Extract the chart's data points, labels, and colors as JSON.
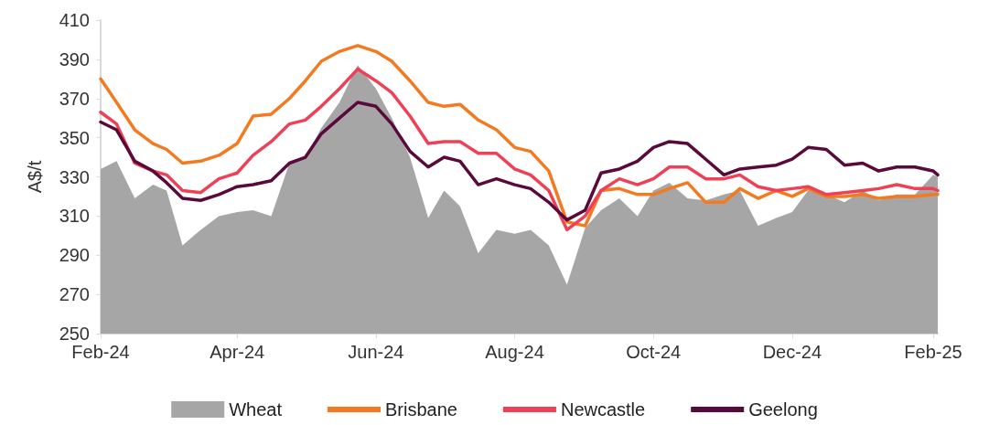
{
  "chart_data": {
    "type": "line",
    "ylabel": "A$/t",
    "x": [
      "2024-02-01",
      "2024-02-08",
      "2024-02-16",
      "2024-02-24",
      "2024-03-01",
      "2024-03-08",
      "2024-03-16",
      "2024-03-24",
      "2024-04-01",
      "2024-04-08",
      "2024-04-16",
      "2024-04-24",
      "2024-05-01",
      "2024-05-08",
      "2024-05-16",
      "2024-05-24",
      "2024-06-01",
      "2024-06-08",
      "2024-06-16",
      "2024-06-24",
      "2024-07-01",
      "2024-07-08",
      "2024-07-16",
      "2024-07-24",
      "2024-08-01",
      "2024-08-08",
      "2024-08-16",
      "2024-08-24",
      "2024-09-01",
      "2024-09-08",
      "2024-09-16",
      "2024-09-24",
      "2024-10-01",
      "2024-10-08",
      "2024-10-16",
      "2024-10-24",
      "2024-11-01",
      "2024-11-08",
      "2024-11-16",
      "2024-11-24",
      "2024-12-01",
      "2024-12-08",
      "2024-12-16",
      "2024-12-24",
      "2025-01-01",
      "2025-01-08",
      "2025-01-16",
      "2025-01-24",
      "2025-02-01",
      "2025-02-03"
    ],
    "series": [
      {
        "name": "Wheat",
        "type": "area",
        "color": "#a6a6a6",
        "values": [
          334,
          338,
          319,
          326,
          323,
          295,
          303,
          310,
          312,
          313,
          310,
          337,
          340,
          355,
          368,
          387,
          375,
          360,
          340,
          309,
          323,
          315,
          291,
          303,
          301,
          303,
          295,
          275,
          304,
          313,
          319,
          310,
          323,
          327,
          319,
          318,
          321,
          323,
          305,
          309,
          312,
          323,
          321,
          317,
          323,
          318,
          321,
          321,
          331,
          330
        ]
      },
      {
        "name": "Brisbane",
        "color": "#f47a20",
        "values": [
          380,
          368,
          354,
          347,
          344,
          337,
          338,
          341,
          347,
          361,
          362,
          370,
          379,
          389,
          394,
          397,
          394,
          389,
          379,
          368,
          366,
          367,
          359,
          354,
          345,
          343,
          333,
          307,
          305,
          323,
          324,
          321,
          321,
          324,
          327,
          317,
          317,
          324,
          319,
          323,
          320,
          324,
          320,
          320,
          321,
          319,
          320,
          320,
          321,
          321
        ]
      },
      {
        "name": "Newcastle",
        "color": "#ee4056",
        "values": [
          363,
          357,
          337,
          333,
          331,
          323,
          322,
          329,
          332,
          341,
          348,
          357,
          359,
          366,
          375,
          385,
          379,
          373,
          361,
          347,
          348,
          348,
          342,
          342,
          334,
          331,
          323,
          303,
          310,
          323,
          329,
          326,
          329,
          335,
          335,
          329,
          329,
          331,
          325,
          323,
          324,
          325,
          321,
          322,
          323,
          324,
          326,
          324,
          324,
          323
        ]
      },
      {
        "name": "Geelong",
        "color": "#5a0a3a",
        "values": [
          358,
          354,
          338,
          333,
          327,
          319,
          318,
          321,
          325,
          326,
          328,
          337,
          340,
          352,
          360,
          368,
          366,
          357,
          343,
          335,
          340,
          338,
          326,
          329,
          326,
          324,
          317,
          308,
          313,
          332,
          334,
          338,
          345,
          348,
          347,
          339,
          331,
          334,
          335,
          336,
          339,
          345,
          344,
          336,
          337,
          333,
          335,
          335,
          333,
          331
        ]
      }
    ],
    "xlim": [
      "2024-02-01",
      "2025-02-03"
    ],
    "xticks": [
      {
        "value": "2024-02-01",
        "label": "Feb-24"
      },
      {
        "value": "2024-04-01",
        "label": "Apr-24"
      },
      {
        "value": "2024-06-01",
        "label": "Jun-24"
      },
      {
        "value": "2024-08-01",
        "label": "Aug-24"
      },
      {
        "value": "2024-10-01",
        "label": "Oct-24"
      },
      {
        "value": "2024-12-01",
        "label": "Dec-24"
      },
      {
        "value": "2025-02-01",
        "label": "Feb-25"
      }
    ],
    "ylim": [
      250,
      410
    ],
    "yticks": [
      250,
      270,
      290,
      310,
      330,
      350,
      370,
      390,
      410
    ],
    "grid": false,
    "legend": "bottom",
    "marker": "none",
    "line_style": "solid"
  }
}
